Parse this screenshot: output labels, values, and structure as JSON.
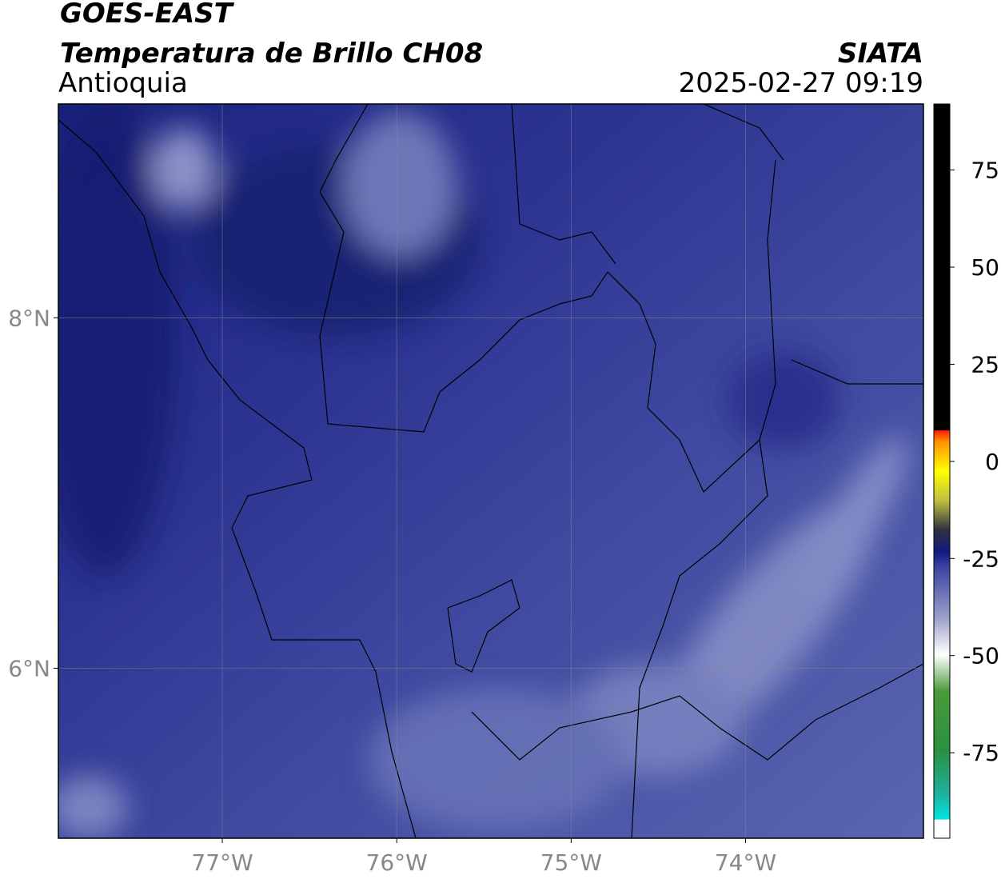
{
  "header": {
    "title": "GOES-EAST",
    "subtitle": "Temperatura de Brillo CH08",
    "region": "Antioquia",
    "source": "SIATA",
    "datetime": "2025-02-27 09:19"
  },
  "map": {
    "lon_range": [
      -77.94,
      -72.98
    ],
    "lat_range": [
      5.03,
      9.22
    ],
    "lon_ticks": [
      {
        "value": -77,
        "label": "77°W"
      },
      {
        "value": -76,
        "label": "76°W"
      },
      {
        "value": -75,
        "label": "75°W"
      },
      {
        "value": -74,
        "label": "74°W"
      }
    ],
    "lat_ticks": [
      {
        "value": 8,
        "label": "8°N"
      },
      {
        "value": 6,
        "label": "6°N"
      }
    ]
  },
  "colorbar": {
    "range": [
      -97,
      92
    ],
    "ticks": [
      75,
      50,
      25,
      0,
      -25,
      -50,
      -75
    ]
  }
}
